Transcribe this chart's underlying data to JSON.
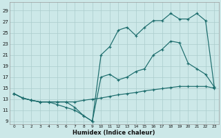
{
  "xlabel": "Humidex (Indice chaleur)",
  "background_color": "#cce8e8",
  "grid_color": "#aacccc",
  "line_color": "#1a6b6b",
  "xlim": [
    -0.5,
    23.5
  ],
  "ylim": [
    8.5,
    30.5
  ],
  "xticks": [
    0,
    1,
    2,
    3,
    4,
    5,
    6,
    7,
    8,
    9,
    10,
    11,
    12,
    13,
    14,
    15,
    16,
    17,
    18,
    19,
    20,
    21,
    22,
    23
  ],
  "yticks": [
    9,
    11,
    13,
    15,
    17,
    19,
    21,
    23,
    25,
    27,
    29
  ],
  "line1": {
    "x": [
      0,
      1,
      2,
      3,
      4,
      5,
      6,
      7,
      8,
      9,
      10,
      11,
      12,
      13,
      14,
      15,
      16,
      17,
      18,
      19,
      20,
      21,
      22,
      23
    ],
    "y": [
      14.0,
      13.2,
      12.8,
      12.5,
      12.5,
      12.5,
      12.5,
      12.5,
      12.8,
      13.0,
      13.2,
      13.5,
      13.8,
      14.0,
      14.2,
      14.5,
      14.7,
      14.9,
      15.1,
      15.3,
      15.3,
      15.3,
      15.3,
      15.0
    ],
    "style": "solid"
  },
  "line2": {
    "x": [
      0,
      1,
      2,
      3,
      4,
      5,
      6,
      7,
      8,
      9,
      10,
      11,
      12,
      13,
      14,
      15,
      16,
      17,
      18,
      19,
      20,
      21,
      22,
      23
    ],
    "y": [
      14.0,
      13.2,
      12.8,
      12.5,
      12.5,
      12.0,
      11.5,
      11.0,
      10.0,
      9.0,
      17.0,
      17.5,
      16.5,
      17.0,
      18.0,
      18.5,
      21.0,
      22.0,
      23.5,
      23.2,
      19.5,
      18.5,
      17.5,
      15.2
    ],
    "style": "solid"
  },
  "line3": {
    "x": [
      0,
      1,
      2,
      3,
      4,
      5,
      6,
      7,
      8,
      9,
      10,
      11,
      12,
      13,
      14,
      15,
      16,
      17,
      18,
      19,
      20,
      21,
      22,
      23
    ],
    "y": [
      14.0,
      13.2,
      12.8,
      12.5,
      12.5,
      12.5,
      12.5,
      11.5,
      10.0,
      9.0,
      21.0,
      22.5,
      25.5,
      26.0,
      24.5,
      26.0,
      27.2,
      27.2,
      28.5,
      27.5,
      27.5,
      28.5,
      27.2,
      15.2
    ],
    "style": "solid"
  }
}
